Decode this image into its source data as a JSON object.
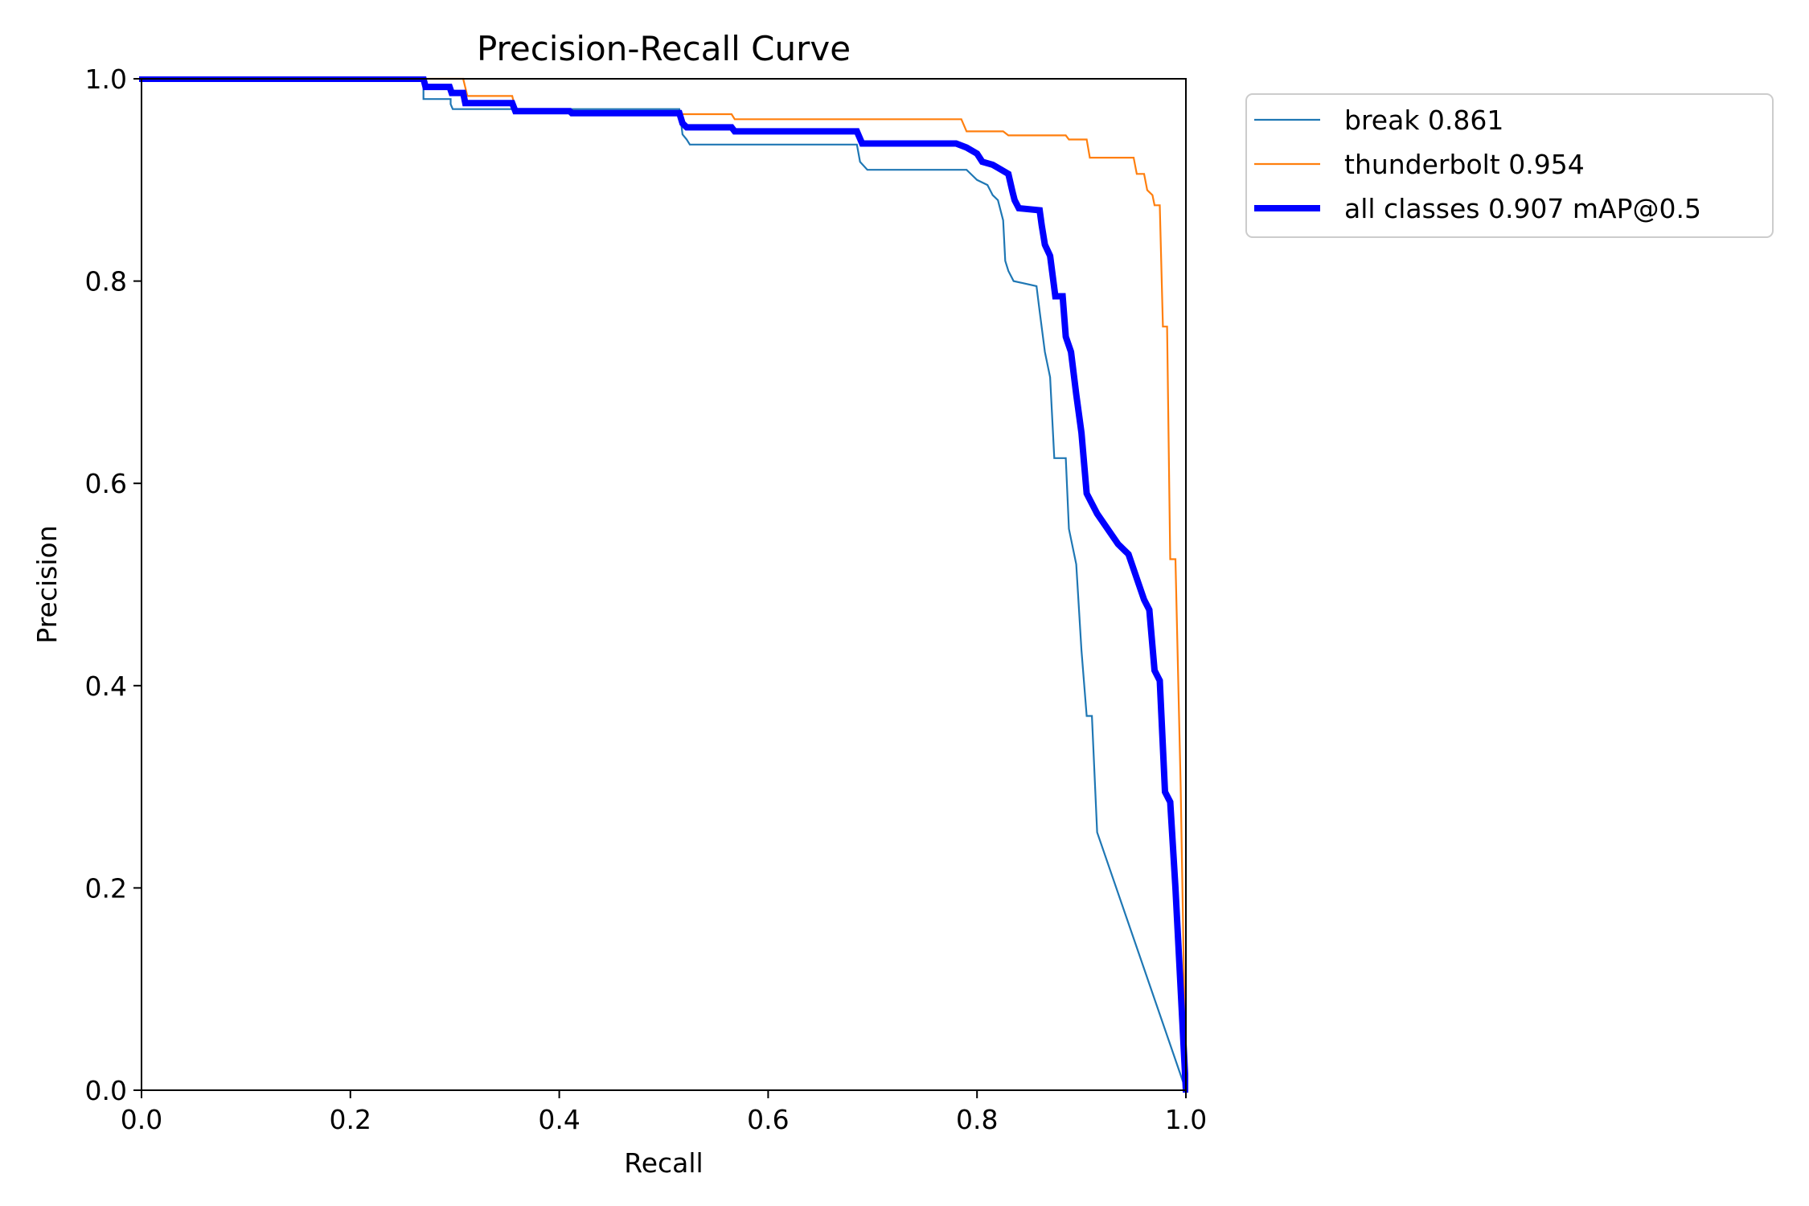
{
  "chart_data": {
    "type": "line",
    "title": "Precision-Recall Curve",
    "xlabel": "Recall",
    "ylabel": "Precision",
    "xlim": [
      0,
      1
    ],
    "ylim": [
      0,
      1
    ],
    "x_ticks": [
      "0.0",
      "0.2",
      "0.4",
      "0.6",
      "0.8",
      "1.0"
    ],
    "y_ticks": [
      "0.0",
      "0.2",
      "0.4",
      "0.6",
      "0.8",
      "1.0"
    ],
    "grid": false,
    "legend_position": "outside-top-right",
    "series": [
      {
        "name": "break 0.861",
        "color": "#1f77b4",
        "line_width": "thin",
        "points": [
          [
            0.0,
            1.0
          ],
          [
            0.27,
            1.0
          ],
          [
            0.27,
            0.98
          ],
          [
            0.296,
            0.98
          ],
          [
            0.296,
            0.975
          ],
          [
            0.298,
            0.97
          ],
          [
            0.515,
            0.97
          ],
          [
            0.518,
            0.945
          ],
          [
            0.522,
            0.94
          ],
          [
            0.525,
            0.935
          ],
          [
            0.685,
            0.935
          ],
          [
            0.688,
            0.918
          ],
          [
            0.695,
            0.91
          ],
          [
            0.79,
            0.91
          ],
          [
            0.795,
            0.905
          ],
          [
            0.8,
            0.9
          ],
          [
            0.81,
            0.895
          ],
          [
            0.815,
            0.885
          ],
          [
            0.82,
            0.88
          ],
          [
            0.825,
            0.86
          ],
          [
            0.827,
            0.82
          ],
          [
            0.83,
            0.81
          ],
          [
            0.835,
            0.8
          ],
          [
            0.857,
            0.795
          ],
          [
            0.86,
            0.77
          ],
          [
            0.865,
            0.73
          ],
          [
            0.87,
            0.705
          ],
          [
            0.874,
            0.625
          ],
          [
            0.885,
            0.625
          ],
          [
            0.888,
            0.555
          ],
          [
            0.895,
            0.52
          ],
          [
            0.9,
            0.435
          ],
          [
            0.905,
            0.37
          ],
          [
            0.91,
            0.37
          ],
          [
            0.915,
            0.255
          ],
          [
            1.0,
            0.0
          ]
        ]
      },
      {
        "name": "thunderbolt 0.954",
        "color": "#ff7f0e",
        "line_width": "thin",
        "points": [
          [
            0.0,
            1.0
          ],
          [
            0.308,
            1.0
          ],
          [
            0.312,
            0.983
          ],
          [
            0.355,
            0.983
          ],
          [
            0.358,
            0.97
          ],
          [
            0.52,
            0.965
          ],
          [
            0.565,
            0.965
          ],
          [
            0.568,
            0.96
          ],
          [
            0.785,
            0.96
          ],
          [
            0.79,
            0.948
          ],
          [
            0.825,
            0.948
          ],
          [
            0.83,
            0.944
          ],
          [
            0.885,
            0.944
          ],
          [
            0.888,
            0.94
          ],
          [
            0.905,
            0.94
          ],
          [
            0.908,
            0.922
          ],
          [
            0.95,
            0.922
          ],
          [
            0.953,
            0.906
          ],
          [
            0.96,
            0.906
          ],
          [
            0.963,
            0.89
          ],
          [
            0.968,
            0.885
          ],
          [
            0.97,
            0.875
          ],
          [
            0.975,
            0.875
          ],
          [
            0.978,
            0.755
          ],
          [
            0.982,
            0.755
          ],
          [
            0.985,
            0.525
          ],
          [
            0.99,
            0.525
          ],
          [
            0.995,
            0.3
          ],
          [
            1.0,
            0.0
          ]
        ]
      },
      {
        "name": "all classes 0.907 mAP@0.5",
        "color": "#0000ff",
        "line_width": "thick",
        "points": [
          [
            0.0,
            1.0
          ],
          [
            0.27,
            1.0
          ],
          [
            0.272,
            0.992
          ],
          [
            0.295,
            0.992
          ],
          [
            0.297,
            0.986
          ],
          [
            0.308,
            0.986
          ],
          [
            0.31,
            0.976
          ],
          [
            0.355,
            0.976
          ],
          [
            0.358,
            0.968
          ],
          [
            0.41,
            0.968
          ],
          [
            0.412,
            0.966
          ],
          [
            0.515,
            0.966
          ],
          [
            0.518,
            0.956
          ],
          [
            0.522,
            0.952
          ],
          [
            0.565,
            0.952
          ],
          [
            0.568,
            0.948
          ],
          [
            0.685,
            0.948
          ],
          [
            0.69,
            0.936
          ],
          [
            0.78,
            0.936
          ],
          [
            0.79,
            0.932
          ],
          [
            0.8,
            0.926
          ],
          [
            0.805,
            0.918
          ],
          [
            0.815,
            0.915
          ],
          [
            0.82,
            0.912
          ],
          [
            0.83,
            0.906
          ],
          [
            0.834,
            0.888
          ],
          [
            0.836,
            0.88
          ],
          [
            0.84,
            0.872
          ],
          [
            0.86,
            0.87
          ],
          [
            0.862,
            0.855
          ],
          [
            0.865,
            0.836
          ],
          [
            0.87,
            0.825
          ],
          [
            0.875,
            0.785
          ],
          [
            0.882,
            0.785
          ],
          [
            0.885,
            0.745
          ],
          [
            0.89,
            0.73
          ],
          [
            0.895,
            0.688
          ],
          [
            0.9,
            0.65
          ],
          [
            0.905,
            0.59
          ],
          [
            0.915,
            0.57
          ],
          [
            0.935,
            0.54
          ],
          [
            0.945,
            0.53
          ],
          [
            0.955,
            0.5
          ],
          [
            0.96,
            0.485
          ],
          [
            0.965,
            0.475
          ],
          [
            0.97,
            0.415
          ],
          [
            0.975,
            0.405
          ],
          [
            0.98,
            0.295
          ],
          [
            0.985,
            0.285
          ],
          [
            0.99,
            0.2
          ],
          [
            1.0,
            0.0
          ]
        ]
      }
    ]
  }
}
